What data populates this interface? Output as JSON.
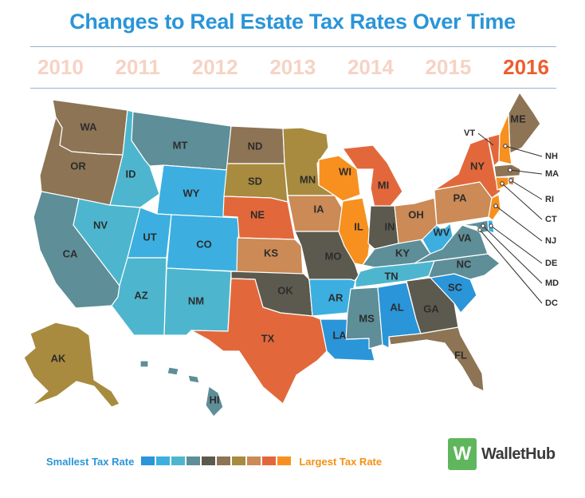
{
  "title": "Changes to Real Estate Tax Rates Over Time",
  "years": [
    "2010",
    "2011",
    "2012",
    "2013",
    "2014",
    "2015",
    "2016"
  ],
  "selected_year": "2016",
  "legend": {
    "low_label": "Smallest Tax Rate",
    "high_label": "Largest Tax Rate",
    "scale_colors": [
      "#2a95d8",
      "#3cafe0",
      "#4db6ce",
      "#5e8e98",
      "#5c5a4e",
      "#8d7455",
      "#a88b3f",
      "#cb8a56",
      "#e2683b",
      "#f7901e"
    ]
  },
  "brand": {
    "logo_letter": "W",
    "name": "WalletHub"
  },
  "map_data": {
    "states": [
      {
        "code": "WA",
        "color": "#8d7455"
      },
      {
        "code": "OR",
        "color": "#8d7455"
      },
      {
        "code": "CA",
        "color": "#5e8e98"
      },
      {
        "code": "ID",
        "color": "#4db6ce"
      },
      {
        "code": "NV",
        "color": "#4db6ce"
      },
      {
        "code": "MT",
        "color": "#5e8e98"
      },
      {
        "code": "WY",
        "color": "#3cafe0"
      },
      {
        "code": "UT",
        "color": "#3cafe0"
      },
      {
        "code": "AZ",
        "color": "#4db6ce"
      },
      {
        "code": "CO",
        "color": "#3cafe0"
      },
      {
        "code": "NM",
        "color": "#4db6ce"
      },
      {
        "code": "ND",
        "color": "#8d7455"
      },
      {
        "code": "SD",
        "color": "#a88b3f"
      },
      {
        "code": "NE",
        "color": "#e2683b"
      },
      {
        "code": "KS",
        "color": "#cb8a56"
      },
      {
        "code": "OK",
        "color": "#5c5a4e"
      },
      {
        "code": "TX",
        "color": "#e2683b"
      },
      {
        "code": "MN",
        "color": "#a88b3f"
      },
      {
        "code": "IA",
        "color": "#cb8a56"
      },
      {
        "code": "MO",
        "color": "#5c5a4e"
      },
      {
        "code": "AR",
        "color": "#3cafe0"
      },
      {
        "code": "LA",
        "color": "#2a95d8"
      },
      {
        "code": "WI",
        "color": "#f7901e"
      },
      {
        "code": "IL",
        "color": "#f7901e"
      },
      {
        "code": "MS",
        "color": "#5e8e98"
      },
      {
        "code": "MI",
        "color": "#e2683b"
      },
      {
        "code": "IN",
        "color": "#5c5a4e"
      },
      {
        "code": "KY",
        "color": "#5e8e98"
      },
      {
        "code": "TN",
        "color": "#4db6ce"
      },
      {
        "code": "AL",
        "color": "#2a95d8"
      },
      {
        "code": "OH",
        "color": "#cb8a56"
      },
      {
        "code": "WV",
        "color": "#3cafe0"
      },
      {
        "code": "GA",
        "color": "#5c5a4e"
      },
      {
        "code": "FL",
        "color": "#8d7455"
      },
      {
        "code": "SC",
        "color": "#2a95d8"
      },
      {
        "code": "NC",
        "color": "#5e8e98"
      },
      {
        "code": "VA",
        "color": "#5e8e98"
      },
      {
        "code": "PA",
        "color": "#cb8a56"
      },
      {
        "code": "NY",
        "color": "#e2683b"
      },
      {
        "code": "ME",
        "color": "#8d7455"
      },
      {
        "code": "AK",
        "color": "#a88b3f"
      },
      {
        "code": "HI",
        "color": "#5e8e98"
      },
      {
        "code": "VT",
        "color": "#e2683b"
      },
      {
        "code": "NH",
        "color": "#f7901e"
      },
      {
        "code": "MA",
        "color": "#8d7455"
      },
      {
        "code": "RI",
        "color": "#cb8a56"
      },
      {
        "code": "CT",
        "color": "#f7901e"
      },
      {
        "code": "NJ",
        "color": "#f7901e"
      },
      {
        "code": "DE",
        "color": "#3cafe0"
      },
      {
        "code": "MD",
        "color": "#5e8e98"
      },
      {
        "code": "DC",
        "color": "#5e8e98"
      }
    ]
  }
}
